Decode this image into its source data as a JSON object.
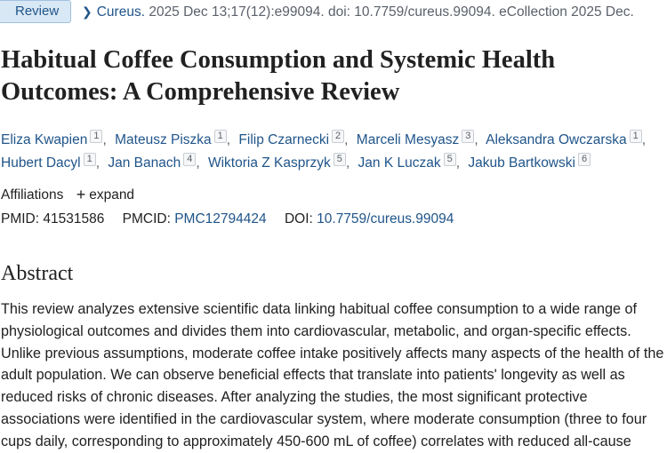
{
  "header": {
    "badge": "Review",
    "journal": "Cureus.",
    "citation_rest": " 2025 Dec 13;17(12):e99094. doi: 10.7759/cureus.99094. eCollection 2025 Dec."
  },
  "title": "Habitual Coffee Consumption and Systemic Health Outcomes: A Comprehensive Review",
  "authors": [
    {
      "name": "Eliza Kwapien",
      "aff": "1"
    },
    {
      "name": "Mateusz Piszka",
      "aff": "1"
    },
    {
      "name": "Filip Czarnecki",
      "aff": "2"
    },
    {
      "name": "Marceli Mesyasz",
      "aff": "3"
    },
    {
      "name": "Aleksandra Owczarska",
      "aff": "1"
    },
    {
      "name": "Hubert Dacyl",
      "aff": "1"
    },
    {
      "name": "Jan Banach",
      "aff": "4"
    },
    {
      "name": "Wiktoria Z Kasprzyk",
      "aff": "5"
    },
    {
      "name": "Jan K Luczak",
      "aff": "5"
    },
    {
      "name": "Jakub Bartkowski",
      "aff": "6"
    }
  ],
  "affiliations": {
    "label": "Affiliations",
    "toggle": "expand",
    "toggle_icon": "+"
  },
  "identifiers": {
    "pmid_label": "PMID:",
    "pmid": "41531586",
    "pmcid_label": "PMCID:",
    "pmcid": "PMC12794424",
    "doi_label": "DOI:",
    "doi": "10.7759/cureus.99094"
  },
  "abstract": {
    "heading": "Abstract",
    "text": "This review analyzes extensive scientific data linking habitual coffee consumption to a wide range of physiological outcomes and divides them into cardiovascular, metabolic, and organ-specific effects. Unlike previous assumptions, moderate coffee intake positively affects many aspects of the health of the adult population. We can observe beneficial effects that translate into patients' longevity as well as reduced risks of chronic diseases. After analyzing the studies, the most significant protective associations were identified in the cardiovascular system, where moderate consumption (three to four cups daily, corresponding to approximately 450-600 mL of coffee) correlates with reduced all-cause"
  }
}
